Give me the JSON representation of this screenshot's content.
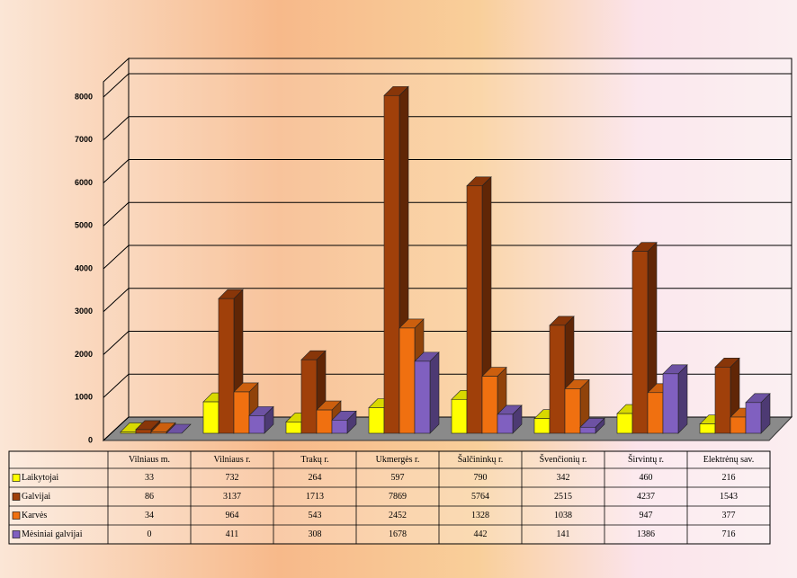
{
  "chart_data": {
    "type": "bar3d",
    "categories": [
      "Vilniaus m.",
      "Vilniaus r.",
      "Trakų r.",
      "Ukmergės r.",
      "Šalčininkų r.",
      "Švenčionių r.",
      "Širvintų r.",
      "Elektrėnų sav."
    ],
    "series": [
      {
        "name": "Laikytojai",
        "color": "#ffff00",
        "values": [
          33,
          732,
          264,
          597,
          790,
          342,
          460,
          216
        ]
      },
      {
        "name": "Galvijai",
        "color": "#a0400a",
        "values": [
          86,
          3137,
          1713,
          7869,
          5764,
          2515,
          4237,
          1543
        ]
      },
      {
        "name": "Karvės",
        "color": "#f07010",
        "values": [
          34,
          964,
          543,
          2452,
          1328,
          1038,
          947,
          377
        ]
      },
      {
        "name": "Mėsiniai galvijai",
        "color": "#8060c0",
        "values": [
          0,
          411,
          308,
          1678,
          442,
          141,
          1386,
          716
        ]
      }
    ],
    "ylim": [
      0,
      8000
    ],
    "yticks": [
      0,
      1000,
      2000,
      3000,
      4000,
      5000,
      6000,
      7000,
      8000
    ],
    "grid": true
  }
}
